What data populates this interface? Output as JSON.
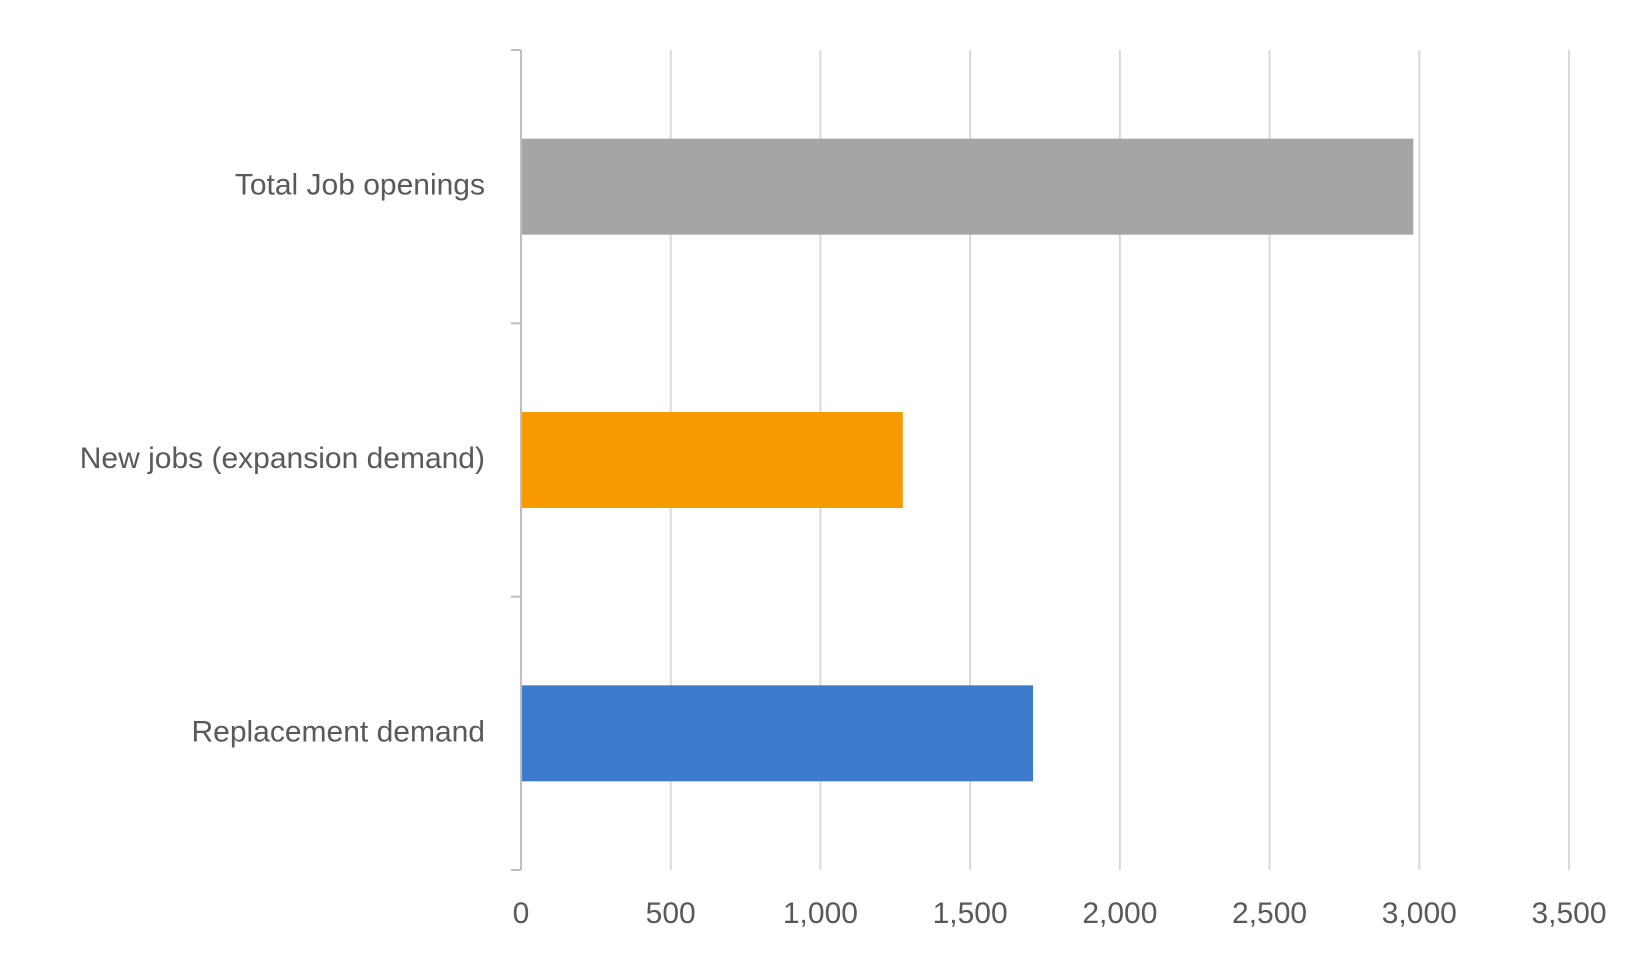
{
  "chart_data": {
    "type": "bar",
    "orientation": "horizontal",
    "categories": [
      "Total Job openings",
      "New jobs (expansion demand)",
      "Replacement demand"
    ],
    "values": [
      2980,
      1275,
      1710
    ],
    "colors": [
      "#a5a5a5",
      "#f59a00",
      "#3d7bcf"
    ],
    "xlim": [
      0,
      3500
    ],
    "xticks": [
      0,
      500,
      1000,
      1500,
      2000,
      2500,
      3000,
      3500
    ],
    "xtick_labels": [
      "0",
      "500",
      "1,000",
      "1,500",
      "2,000",
      "2,500",
      "3,000",
      "3,500"
    ],
    "grid": true,
    "legend": "none",
    "title": "",
    "xlabel": "",
    "ylabel": ""
  }
}
